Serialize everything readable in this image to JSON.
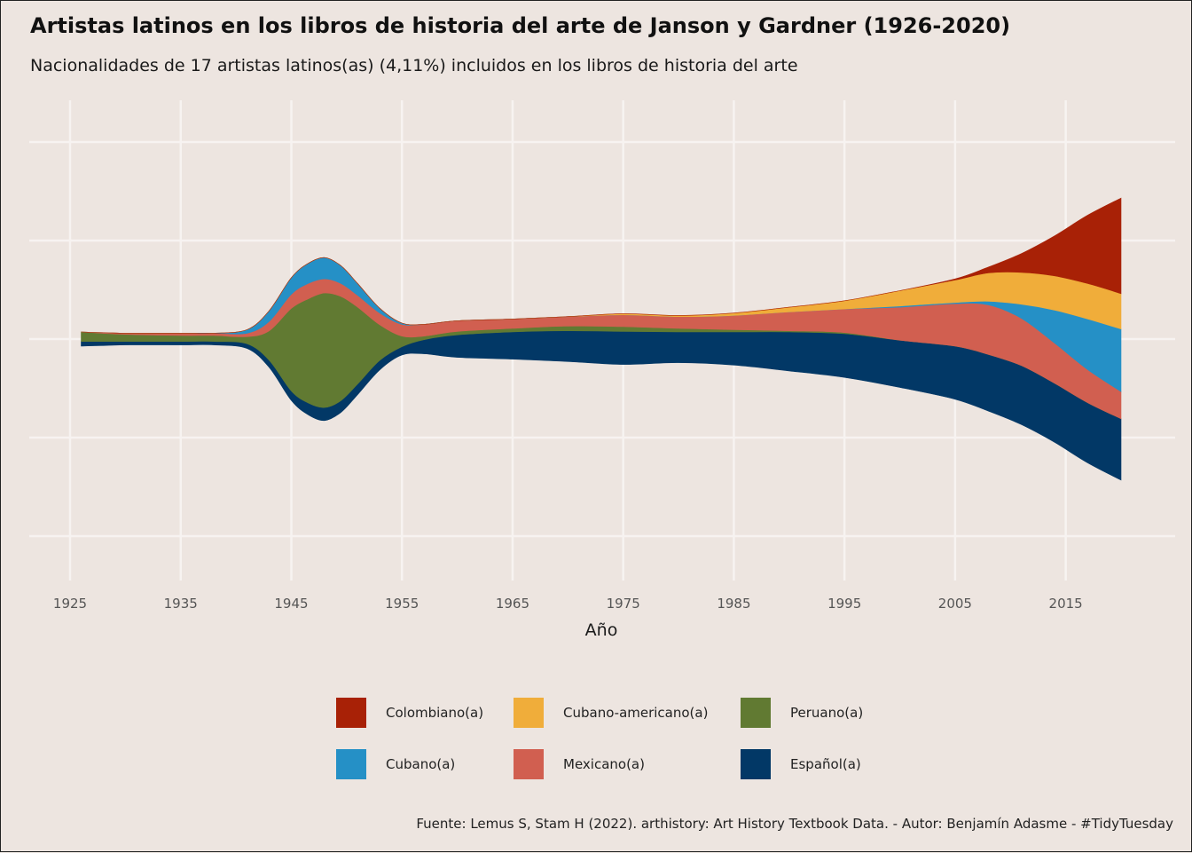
{
  "title": "Artistas latinos en los libros de historia del arte de Janson y Gardner (1926-2020)",
  "subtitle": "Nacionalidades de 17 artistas latinos(as) (4,11%) incluidos en los libros de historia del arte",
  "caption": "Fuente: Lemus S, Stam H (2022). arthistory: Art History Textbook Data. - Autor: Benjamín Adasme - #TidyTuesday",
  "legend": {
    "items": [
      {
        "label": "Colombiano(a)",
        "color": "#a82106"
      },
      {
        "label": "Cubano-americano(a)",
        "color": "#f0ad3a"
      },
      {
        "label": "Peruano(a)",
        "color": "#617a32"
      },
      {
        "label": "Cubano(a)",
        "color": "#2590c6"
      },
      {
        "label": "Mexicano(a)",
        "color": "#d15f50"
      },
      {
        "label": "Español(a)",
        "color": "#023866"
      }
    ]
  },
  "chart_data": {
    "type": "area",
    "subtype": "streamgraph",
    "title": "Artistas latinos en los libros de historia del arte de Janson y Gardner (1926-2020)",
    "xlabel": "Año",
    "ylabel": "",
    "xlim": [
      1926,
      2020
    ],
    "x_ticks": [
      1925,
      1935,
      1945,
      1955,
      1965,
      1975,
      1985,
      1995,
      2005,
      2015
    ],
    "y_ticks_shown": false,
    "grid": true,
    "legend_position": "bottom",
    "x": [
      1926,
      1930,
      1935,
      1938,
      1941,
      1943,
      1945,
      1946.5,
      1948,
      1949.5,
      1951,
      1953,
      1955,
      1957,
      1960,
      1965,
      1970,
      1975,
      1980,
      1985,
      1990,
      1995,
      2000,
      2005,
      2008,
      2011,
      2014,
      2017,
      2020
    ],
    "series": [
      {
        "name": "Español(a)",
        "color": "#023866",
        "values": [
          0.4,
          0.3,
          0.3,
          0.3,
          0.4,
          0.6,
          0.8,
          1.0,
          1.1,
          1.0,
          0.9,
          0.8,
          0.7,
          1.2,
          1.9,
          2.3,
          2.6,
          2.8,
          2.6,
          2.8,
          3.3,
          3.7,
          4.0,
          4.5,
          4.8,
          5.0,
          5.0,
          5.1,
          5.2
        ]
      },
      {
        "name": "Peruano(a)",
        "color": "#617a32",
        "values": [
          0.8,
          0.6,
          0.5,
          0.5,
          0.6,
          2.5,
          7.0,
          8.8,
          9.7,
          8.8,
          6.5,
          3.0,
          0.9,
          0.3,
          0.3,
          0.3,
          0.4,
          0.4,
          0.3,
          0.2,
          0.1,
          0.1,
          0.0,
          0.0,
          0.0,
          0.0,
          0.0,
          0.0,
          0.0
        ]
      },
      {
        "name": "Mexicano(a)",
        "color": "#d15f50",
        "values": [
          0.0,
          0.1,
          0.2,
          0.2,
          0.3,
          0.8,
          1.2,
          1.3,
          1.2,
          1.1,
          1.0,
          1.0,
          1.0,
          1.0,
          0.9,
          0.8,
          0.8,
          1.0,
          1.0,
          1.2,
          1.6,
          2.0,
          2.8,
          3.6,
          4.2,
          4.0,
          3.4,
          2.8,
          2.3
        ]
      },
      {
        "name": "Cubano(a)",
        "color": "#2590c6",
        "values": [
          0.0,
          0.0,
          0.0,
          0.0,
          0.3,
          0.9,
          1.4,
          1.7,
          1.8,
          1.5,
          1.0,
          0.4,
          0.1,
          0.0,
          0.0,
          0.0,
          0.0,
          0.0,
          0.0,
          0.0,
          0.0,
          0.0,
          0.1,
          0.1,
          0.3,
          1.2,
          2.8,
          4.3,
          5.3
        ]
      },
      {
        "name": "Cubano-americano(a)",
        "color": "#f0ad3a",
        "values": [
          0.0,
          0.0,
          0.0,
          0.0,
          0.0,
          0.0,
          0.0,
          0.0,
          0.0,
          0.0,
          0.0,
          0.0,
          0.0,
          0.0,
          0.0,
          0.0,
          0.0,
          0.1,
          0.1,
          0.2,
          0.4,
          0.7,
          1.3,
          1.9,
          2.4,
          2.7,
          2.9,
          3.0,
          3.0
        ]
      },
      {
        "name": "Colombiano(a)",
        "color": "#a82106",
        "values": [
          0.0,
          0.0,
          0.0,
          0.0,
          0.0,
          0.0,
          0.0,
          0.0,
          0.0,
          0.0,
          0.0,
          0.0,
          0.0,
          0.0,
          0.0,
          0.0,
          0.0,
          0.0,
          0.0,
          0.0,
          0.0,
          0.0,
          0.0,
          0.1,
          0.5,
          1.6,
          3.4,
          5.8,
          8.1
        ]
      }
    ]
  }
}
